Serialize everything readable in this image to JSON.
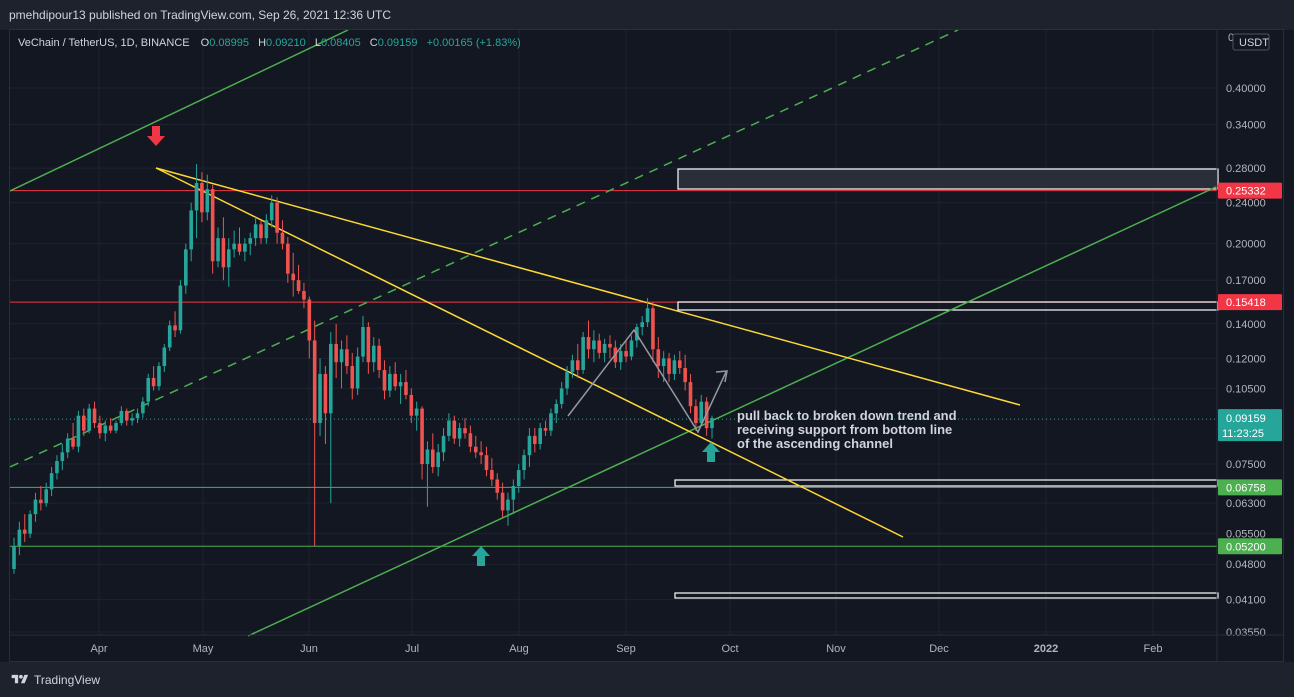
{
  "publisher_line": "pmehdipour13 published on TradingView.com, Sep 26, 2021 12:36 UTC",
  "footer_brand": "TradingView",
  "chart_data": {
    "type": "candlestick",
    "symbol_line": "VeChain / TetherUS, 1D, BINANCE",
    "ohlc": {
      "o_label": "O",
      "o": "0.08995",
      "h_label": "H",
      "h": "0.09210",
      "l_label": "L",
      "l": "0.08405",
      "c_label": "C",
      "c": "0.09159",
      "change": "+0.00165 (+1.83%)"
    },
    "currency": "USDT",
    "y_axis_truncated_label": "0",
    "y_scale": "log",
    "ylim": [
      0.0335,
      0.5
    ],
    "y_ticks": [
      "0.40000",
      "0.34000",
      "0.28000",
      "0.24000",
      "0.20000",
      "0.17000",
      "0.14000",
      "0.12000",
      "0.10500",
      "0.07500",
      "0.06300",
      "0.05500",
      "0.04800",
      "0.04100",
      "0.03550"
    ],
    "y_tick_values": [
      0.4,
      0.34,
      0.28,
      0.24,
      0.2,
      0.17,
      0.14,
      0.12,
      0.105,
      0.075,
      0.063,
      0.055,
      0.048,
      0.041,
      0.0355
    ],
    "x_ticks": [
      "Apr",
      "May",
      "Jun",
      "Jul",
      "Aug",
      "Sep",
      "Oct",
      "Nov",
      "Dec",
      "2022",
      "Feb"
    ],
    "x_tick_bold": "2022",
    "price_labels": [
      {
        "value": "0.25332",
        "v": 0.25332,
        "color": "#f23645"
      },
      {
        "value": "0.15418",
        "v": 0.15418,
        "color": "#f23645"
      },
      {
        "value": "0.06758",
        "v": 0.06758,
        "color": "#4caf50"
      },
      {
        "value": "0.05200",
        "v": 0.052,
        "color": "#4caf50"
      }
    ],
    "last_price": {
      "value": "0.09159",
      "countdown": "11:23:25",
      "v": 0.09159,
      "color": "#26a69a"
    },
    "horizontal_levels": [
      {
        "v": 0.25332,
        "color": "#f23645"
      },
      {
        "v": 0.15418,
        "color": "#f23645"
      },
      {
        "v": 0.06758,
        "color": "#4caf50"
      },
      {
        "v": 0.052,
        "color": "#4caf50"
      }
    ],
    "annotation": [
      "pull back to broken down trend and",
      "receiving support from bottom line",
      "of the ascending channel"
    ],
    "candles": [
      [
        0.047,
        0.054,
        0.046,
        0.052
      ],
      [
        0.052,
        0.058,
        0.05,
        0.056
      ],
      [
        0.056,
        0.06,
        0.053,
        0.055
      ],
      [
        0.055,
        0.061,
        0.054,
        0.06
      ],
      [
        0.06,
        0.066,
        0.058,
        0.064
      ],
      [
        0.064,
        0.068,
        0.061,
        0.063
      ],
      [
        0.063,
        0.069,
        0.062,
        0.067
      ],
      [
        0.067,
        0.074,
        0.065,
        0.072
      ],
      [
        0.072,
        0.078,
        0.07,
        0.076
      ],
      [
        0.076,
        0.082,
        0.073,
        0.079
      ],
      [
        0.079,
        0.086,
        0.077,
        0.084
      ],
      [
        0.084,
        0.09,
        0.08,
        0.081
      ],
      [
        0.081,
        0.095,
        0.079,
        0.093
      ],
      [
        0.093,
        0.096,
        0.085,
        0.087
      ],
      [
        0.087,
        0.098,
        0.086,
        0.096
      ],
      [
        0.096,
        0.099,
        0.088,
        0.09
      ],
      [
        0.09,
        0.093,
        0.084,
        0.086
      ],
      [
        0.086,
        0.091,
        0.083,
        0.089
      ],
      [
        0.089,
        0.092,
        0.086,
        0.087
      ],
      [
        0.087,
        0.091,
        0.086,
        0.09
      ],
      [
        0.09,
        0.097,
        0.089,
        0.095
      ],
      [
        0.095,
        0.096,
        0.089,
        0.091
      ],
      [
        0.091,
        0.094,
        0.089,
        0.092
      ],
      [
        0.092,
        0.096,
        0.09,
        0.094
      ],
      [
        0.094,
        0.101,
        0.092,
        0.099
      ],
      [
        0.099,
        0.112,
        0.097,
        0.11
      ],
      [
        0.11,
        0.116,
        0.104,
        0.106
      ],
      [
        0.106,
        0.118,
        0.104,
        0.116
      ],
      [
        0.116,
        0.128,
        0.113,
        0.126
      ],
      [
        0.126,
        0.142,
        0.124,
        0.139
      ],
      [
        0.139,
        0.148,
        0.132,
        0.136
      ],
      [
        0.136,
        0.17,
        0.134,
        0.166
      ],
      [
        0.166,
        0.2,
        0.16,
        0.195
      ],
      [
        0.195,
        0.24,
        0.185,
        0.232
      ],
      [
        0.232,
        0.285,
        0.205,
        0.262
      ],
      [
        0.262,
        0.275,
        0.22,
        0.23
      ],
      [
        0.23,
        0.272,
        0.222,
        0.255
      ],
      [
        0.255,
        0.26,
        0.175,
        0.185
      ],
      [
        0.185,
        0.215,
        0.18,
        0.205
      ],
      [
        0.205,
        0.225,
        0.17,
        0.18
      ],
      [
        0.18,
        0.205,
        0.165,
        0.195
      ],
      [
        0.195,
        0.212,
        0.188,
        0.2
      ],
      [
        0.2,
        0.215,
        0.19,
        0.193
      ],
      [
        0.193,
        0.205,
        0.185,
        0.2
      ],
      [
        0.2,
        0.21,
        0.19,
        0.205
      ],
      [
        0.205,
        0.225,
        0.198,
        0.218
      ],
      [
        0.218,
        0.222,
        0.2,
        0.205
      ],
      [
        0.205,
        0.228,
        0.2,
        0.222
      ],
      [
        0.222,
        0.248,
        0.215,
        0.24
      ],
      [
        0.24,
        0.246,
        0.2,
        0.21
      ],
      [
        0.21,
        0.222,
        0.195,
        0.2
      ],
      [
        0.2,
        0.206,
        0.168,
        0.175
      ],
      [
        0.175,
        0.192,
        0.158,
        0.17
      ],
      [
        0.17,
        0.182,
        0.16,
        0.162
      ],
      [
        0.162,
        0.168,
        0.15,
        0.156
      ],
      [
        0.156,
        0.158,
        0.12,
        0.13
      ],
      [
        0.13,
        0.142,
        0.052,
        0.09
      ],
      [
        0.09,
        0.12,
        0.085,
        0.112
      ],
      [
        0.112,
        0.116,
        0.082,
        0.094
      ],
      [
        0.094,
        0.135,
        0.063,
        0.128
      ],
      [
        0.128,
        0.14,
        0.11,
        0.118
      ],
      [
        0.118,
        0.13,
        0.105,
        0.125
      ],
      [
        0.125,
        0.133,
        0.112,
        0.116
      ],
      [
        0.116,
        0.123,
        0.1,
        0.105
      ],
      [
        0.105,
        0.126,
        0.102,
        0.121
      ],
      [
        0.121,
        0.145,
        0.118,
        0.138
      ],
      [
        0.138,
        0.141,
        0.112,
        0.118
      ],
      [
        0.118,
        0.132,
        0.113,
        0.127
      ],
      [
        0.127,
        0.131,
        0.11,
        0.114
      ],
      [
        0.114,
        0.119,
        0.1,
        0.104
      ],
      [
        0.104,
        0.116,
        0.101,
        0.112
      ],
      [
        0.112,
        0.118,
        0.104,
        0.106
      ],
      [
        0.106,
        0.112,
        0.098,
        0.108
      ],
      [
        0.108,
        0.114,
        0.1,
        0.102
      ],
      [
        0.102,
        0.105,
        0.09,
        0.093
      ],
      [
        0.093,
        0.099,
        0.087,
        0.096
      ],
      [
        0.096,
        0.097,
        0.07,
        0.075
      ],
      [
        0.075,
        0.083,
        0.062,
        0.08
      ],
      [
        0.08,
        0.086,
        0.072,
        0.074
      ],
      [
        0.074,
        0.082,
        0.071,
        0.079
      ],
      [
        0.079,
        0.088,
        0.076,
        0.085
      ],
      [
        0.085,
        0.094,
        0.083,
        0.091
      ],
      [
        0.091,
        0.093,
        0.082,
        0.084
      ],
      [
        0.084,
        0.09,
        0.081,
        0.088
      ],
      [
        0.088,
        0.092,
        0.084,
        0.086
      ],
      [
        0.086,
        0.089,
        0.079,
        0.081
      ],
      [
        0.081,
        0.085,
        0.077,
        0.079
      ],
      [
        0.079,
        0.083,
        0.075,
        0.078
      ],
      [
        0.078,
        0.081,
        0.071,
        0.073
      ],
      [
        0.073,
        0.077,
        0.068,
        0.07
      ],
      [
        0.07,
        0.072,
        0.064,
        0.066
      ],
      [
        0.066,
        0.069,
        0.059,
        0.061
      ],
      [
        0.061,
        0.066,
        0.057,
        0.064
      ],
      [
        0.064,
        0.07,
        0.06,
        0.068
      ],
      [
        0.068,
        0.075,
        0.066,
        0.073
      ],
      [
        0.073,
        0.08,
        0.07,
        0.078
      ],
      [
        0.078,
        0.088,
        0.074,
        0.085
      ],
      [
        0.085,
        0.088,
        0.079,
        0.082
      ],
      [
        0.082,
        0.09,
        0.08,
        0.088
      ],
      [
        0.088,
        0.091,
        0.085,
        0.087
      ],
      [
        0.087,
        0.096,
        0.085,
        0.094
      ],
      [
        0.094,
        0.1,
        0.09,
        0.098
      ],
      [
        0.098,
        0.108,
        0.096,
        0.105
      ],
      [
        0.105,
        0.116,
        0.102,
        0.113
      ],
      [
        0.113,
        0.122,
        0.11,
        0.119
      ],
      [
        0.119,
        0.128,
        0.11,
        0.114
      ],
      [
        0.114,
        0.135,
        0.112,
        0.132
      ],
      [
        0.132,
        0.142,
        0.12,
        0.125
      ],
      [
        0.125,
        0.136,
        0.118,
        0.13
      ],
      [
        0.13,
        0.134,
        0.12,
        0.123
      ],
      [
        0.123,
        0.131,
        0.118,
        0.128
      ],
      [
        0.128,
        0.133,
        0.12,
        0.126
      ],
      [
        0.126,
        0.13,
        0.115,
        0.118
      ],
      [
        0.118,
        0.128,
        0.114,
        0.124
      ],
      [
        0.124,
        0.13,
        0.118,
        0.121
      ],
      [
        0.121,
        0.133,
        0.119,
        0.13
      ],
      [
        0.13,
        0.14,
        0.126,
        0.138
      ],
      [
        0.138,
        0.145,
        0.133,
        0.141
      ],
      [
        0.141,
        0.157,
        0.138,
        0.15
      ],
      [
        0.15,
        0.154,
        0.118,
        0.125
      ],
      [
        0.125,
        0.132,
        0.11,
        0.116
      ],
      [
        0.116,
        0.124,
        0.108,
        0.12
      ],
      [
        0.12,
        0.123,
        0.108,
        0.112
      ],
      [
        0.112,
        0.122,
        0.109,
        0.119
      ],
      [
        0.119,
        0.124,
        0.112,
        0.115
      ],
      [
        0.115,
        0.122,
        0.104,
        0.108
      ],
      [
        0.108,
        0.112,
        0.094,
        0.097
      ],
      [
        0.097,
        0.1,
        0.087,
        0.09
      ],
      [
        0.09,
        0.102,
        0.089,
        0.099
      ],
      [
        0.099,
        0.101,
        0.085,
        0.088
      ],
      [
        0.088,
        0.093,
        0.084,
        0.092
      ]
    ]
  }
}
